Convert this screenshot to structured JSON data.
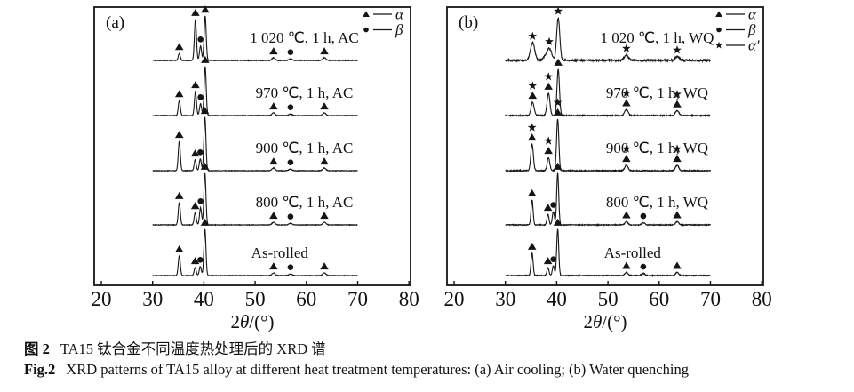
{
  "figure": {
    "caption": {
      "zh_label": "图 2",
      "zh_text": "TA15 钛合金不同温度热处理后的 XRD 谱",
      "en_label": "Fig.2",
      "en_text": "XRD patterns of TA15 alloy at different heat treatment temperatures: (a) Air cooling; (b) Water quenching"
    },
    "colors": {
      "ink": "#151515",
      "background": "#ffffff"
    }
  },
  "chart_data": [
    {
      "type": "line",
      "panel_label": "(a)",
      "xlabel": "2θ/(°)",
      "xlabel_parts": [
        {
          "t": "2",
          "italic": false
        },
        {
          "t": "θ",
          "italic": true
        },
        {
          "t": "/(°)",
          "italic": false
        }
      ],
      "xlim": [
        20,
        80
      ],
      "xticks": [
        20,
        30,
        40,
        50,
        60,
        70,
        80
      ],
      "ylabel": "",
      "grid": false,
      "legend_position": "top-right",
      "legend": [
        {
          "symbol": "triangle",
          "label": "α"
        },
        {
          "symbol": "dot",
          "label": "β"
        }
      ],
      "series": [
        {
          "label": "1 020 ℃, 1 h, AC",
          "noise": 0.35,
          "peaks": [
            {
              "x": 35.2,
              "i": 13
            },
            {
              "x": 38.35,
              "i": 77
            },
            {
              "x": 39.35,
              "i": 27
            },
            {
              "x": 40.25,
              "i": 83
            },
            {
              "x": 53.6,
              "i": 5,
              "w": 0.3
            },
            {
              "x": 56.9,
              "i": 3,
              "w": 0.3
            },
            {
              "x": 63.5,
              "i": 5,
              "w": 0.3
            }
          ],
          "markers": [
            {
              "x": 35.2,
              "phases": [
                "alpha"
              ]
            },
            {
              "x": 38.35,
              "phases": [
                "alpha"
              ]
            },
            {
              "x": 39.35,
              "phases": [
                "beta"
              ]
            },
            {
              "x": 40.25,
              "phases": [
                "alpha"
              ]
            },
            {
              "x": 53.6,
              "phases": [
                "alpha"
              ]
            },
            {
              "x": 56.9,
              "phases": [
                "beta"
              ]
            },
            {
              "x": 63.5,
              "phases": [
                "alpha"
              ]
            }
          ]
        },
        {
          "label": "970 ℃, 1 h, AC",
          "noise": 0.3,
          "peaks": [
            {
              "x": 35.2,
              "i": 28
            },
            {
              "x": 38.35,
              "i": 45
            },
            {
              "x": 39.35,
              "i": 22
            },
            {
              "x": 40.25,
              "i": 92
            },
            {
              "x": 53.6,
              "i": 5,
              "w": 0.3
            },
            {
              "x": 56.9,
              "i": 3,
              "w": 0.3
            },
            {
              "x": 63.5,
              "i": 5,
              "w": 0.3
            }
          ],
          "markers": [
            {
              "x": 35.2,
              "phases": [
                "alpha"
              ]
            },
            {
              "x": 38.35,
              "phases": [
                "alpha"
              ]
            },
            {
              "x": 39.35,
              "phases": [
                "beta"
              ]
            },
            {
              "x": 40.25,
              "phases": [
                "alpha"
              ]
            },
            {
              "x": 53.6,
              "phases": [
                "alpha"
              ]
            },
            {
              "x": 56.9,
              "phases": [
                "beta"
              ]
            },
            {
              "x": 63.5,
              "phases": [
                "alpha"
              ]
            }
          ]
        },
        {
          "label": "900 ℃, 1 h, AC",
          "noise": 0.3,
          "peaks": [
            {
              "x": 35.2,
              "i": 55
            },
            {
              "x": 38.3,
              "i": 20
            },
            {
              "x": 39.3,
              "i": 22
            },
            {
              "x": 40.2,
              "i": 100
            },
            {
              "x": 53.6,
              "i": 5,
              "w": 0.3
            },
            {
              "x": 56.9,
              "i": 3,
              "w": 0.3
            },
            {
              "x": 63.5,
              "i": 5,
              "w": 0.3
            }
          ],
          "markers": [
            {
              "x": 35.2,
              "phases": [
                "alpha"
              ]
            },
            {
              "x": 38.3,
              "phases": [
                "alpha"
              ]
            },
            {
              "x": 39.3,
              "phases": [
                "beta"
              ]
            },
            {
              "x": 40.2,
              "phases": [
                "alpha"
              ]
            },
            {
              "x": 53.6,
              "phases": [
                "alpha"
              ]
            },
            {
              "x": 56.9,
              "phases": [
                "beta"
              ]
            },
            {
              "x": 63.5,
              "phases": [
                "alpha"
              ]
            }
          ]
        },
        {
          "label": "800 ℃, 1 h, AC",
          "noise": 0.3,
          "peaks": [
            {
              "x": 35.2,
              "i": 42
            },
            {
              "x": 38.3,
              "i": 23
            },
            {
              "x": 39.35,
              "i": 32
            },
            {
              "x": 40.2,
              "i": 97
            },
            {
              "x": 53.6,
              "i": 5,
              "w": 0.3
            },
            {
              "x": 56.9,
              "i": 3,
              "w": 0.3
            },
            {
              "x": 63.5,
              "i": 5,
              "w": 0.3
            }
          ],
          "markers": [
            {
              "x": 35.2,
              "phases": [
                "alpha"
              ]
            },
            {
              "x": 38.3,
              "phases": [
                "alpha"
              ]
            },
            {
              "x": 39.35,
              "phases": [
                "beta"
              ]
            },
            {
              "x": 40.2,
              "phases": [
                "alpha"
              ]
            },
            {
              "x": 53.6,
              "phases": [
                "alpha"
              ]
            },
            {
              "x": 56.9,
              "phases": [
                "beta"
              ]
            },
            {
              "x": 63.5,
              "phases": [
                "alpha"
              ]
            }
          ]
        },
        {
          "label": "As-rolled",
          "noise": 0.3,
          "peaks": [
            {
              "x": 35.2,
              "i": 37
            },
            {
              "x": 38.3,
              "i": 15
            },
            {
              "x": 39.3,
              "i": 17
            },
            {
              "x": 40.2,
              "i": 87
            },
            {
              "x": 53.6,
              "i": 5,
              "w": 0.3
            },
            {
              "x": 56.9,
              "i": 3,
              "w": 0.3
            },
            {
              "x": 63.5,
              "i": 5,
              "w": 0.3
            }
          ],
          "markers": [
            {
              "x": 35.2,
              "phases": [
                "alpha"
              ]
            },
            {
              "x": 38.3,
              "phases": [
                "alpha"
              ]
            },
            {
              "x": 39.3,
              "phases": [
                "beta"
              ]
            },
            {
              "x": 40.2,
              "phases": [
                "alpha"
              ]
            },
            {
              "x": 53.6,
              "phases": [
                "alpha"
              ]
            },
            {
              "x": 56.9,
              "phases": [
                "beta"
              ]
            },
            {
              "x": 63.5,
              "phases": [
                "alpha"
              ]
            }
          ]
        }
      ]
    },
    {
      "type": "line",
      "panel_label": "(b)",
      "xlabel": "2θ/(°)",
      "xlabel_parts": [
        {
          "t": "2",
          "italic": false
        },
        {
          "t": "θ",
          "italic": true
        },
        {
          "t": "/(°)",
          "italic": false
        }
      ],
      "xlim": [
        20,
        80
      ],
      "xticks": [
        20,
        30,
        40,
        50,
        60,
        70,
        80
      ],
      "ylabel": "",
      "grid": false,
      "legend_position": "top-right",
      "legend": [
        {
          "symbol": "triangle",
          "label": "α"
        },
        {
          "symbol": "dot",
          "label": "β"
        },
        {
          "symbol": "star",
          "label": "α′"
        }
      ],
      "series": [
        {
          "label": "1 020 ℃, 1 h, WQ",
          "noise": 1.0,
          "peaks": [
            {
              "x": 35.3,
              "i": 33,
              "w": 0.42
            },
            {
              "x": 37.95,
              "i": 9,
              "w": 0.5
            },
            {
              "x": 38.65,
              "i": 19,
              "w": 0.42
            },
            {
              "x": 40.3,
              "i": 80,
              "w": 0.3
            },
            {
              "x": 53.6,
              "i": 10,
              "w": 0.38
            },
            {
              "x": 63.5,
              "i": 7,
              "w": 0.38
            }
          ],
          "markers": [
            {
              "x": 35.3,
              "phases": [
                "alpha_prime"
              ]
            },
            {
              "x": 38.55,
              "phases": [
                "alpha_prime"
              ]
            },
            {
              "x": 40.3,
              "phases": [
                "alpha_prime"
              ]
            },
            {
              "x": 53.6,
              "phases": [
                "alpha_prime"
              ]
            },
            {
              "x": 63.5,
              "phases": [
                "alpha_prime"
              ]
            }
          ]
        },
        {
          "label": "970 ℃, 1 h, WQ",
          "noise": 0.55,
          "peaks": [
            {
              "x": 35.3,
              "i": 25,
              "w": 0.3
            },
            {
              "x": 38.4,
              "i": 42,
              "w": 0.28
            },
            {
              "x": 40.3,
              "i": 87,
              "w": 0.24
            },
            {
              "x": 53.6,
              "i": 11,
              "w": 0.35
            },
            {
              "x": 63.5,
              "i": 9,
              "w": 0.35
            }
          ],
          "markers": [
            {
              "x": 35.3,
              "phases": [
                "alpha",
                "alpha_prime"
              ]
            },
            {
              "x": 38.4,
              "phases": [
                "alpha",
                "alpha_prime"
              ]
            },
            {
              "x": 40.3,
              "phases": [
                "alpha"
              ]
            },
            {
              "x": 53.6,
              "phases": [
                "alpha",
                "alpha_prime"
              ]
            },
            {
              "x": 63.5,
              "phases": [
                "alpha",
                "alpha_prime"
              ]
            }
          ]
        },
        {
          "label": "900 ℃, 1 h, WQ",
          "noise": 0.55,
          "peaks": [
            {
              "x": 35.2,
              "i": 50,
              "w": 0.25
            },
            {
              "x": 38.4,
              "i": 25,
              "w": 0.25
            },
            {
              "x": 40.2,
              "i": 97,
              "w": 0.22
            },
            {
              "x": 53.6,
              "i": 10,
              "w": 0.32
            },
            {
              "x": 63.5,
              "i": 10,
              "w": 0.32
            }
          ],
          "markers": [
            {
              "x": 35.2,
              "phases": [
                "alpha",
                "alpha_prime"
              ]
            },
            {
              "x": 38.4,
              "phases": [
                "alpha",
                "alpha_prime"
              ]
            },
            {
              "x": 40.2,
              "phases": [
                "alpha",
                "alpha_prime"
              ]
            },
            {
              "x": 53.6,
              "phases": [
                "alpha",
                "alpha_prime"
              ]
            },
            {
              "x": 63.5,
              "phases": [
                "alpha",
                "alpha_prime"
              ]
            }
          ]
        },
        {
          "label": "800 ℃, 1 h, WQ",
          "noise": 0.45,
          "peaks": [
            {
              "x": 35.2,
              "i": 47
            },
            {
              "x": 38.3,
              "i": 20
            },
            {
              "x": 39.35,
              "i": 25
            },
            {
              "x": 40.2,
              "i": 97
            },
            {
              "x": 53.6,
              "i": 6,
              "w": 0.3
            },
            {
              "x": 56.9,
              "i": 4,
              "w": 0.3
            },
            {
              "x": 63.5,
              "i": 6,
              "w": 0.3
            }
          ],
          "markers": [
            {
              "x": 35.2,
              "phases": [
                "alpha"
              ]
            },
            {
              "x": 38.3,
              "phases": [
                "alpha"
              ]
            },
            {
              "x": 39.35,
              "phases": [
                "beta"
              ]
            },
            {
              "x": 40.2,
              "phases": [
                "alpha"
              ]
            },
            {
              "x": 53.6,
              "phases": [
                "alpha"
              ]
            },
            {
              "x": 56.9,
              "phases": [
                "beta"
              ]
            },
            {
              "x": 63.5,
              "phases": [
                "alpha"
              ]
            }
          ]
        },
        {
          "label": "As-rolled",
          "noise": 0.45,
          "peaks": [
            {
              "x": 35.2,
              "i": 42
            },
            {
              "x": 38.3,
              "i": 15
            },
            {
              "x": 39.35,
              "i": 18
            },
            {
              "x": 40.2,
              "i": 87
            },
            {
              "x": 53.6,
              "i": 6,
              "w": 0.3
            },
            {
              "x": 56.9,
              "i": 4,
              "w": 0.3
            },
            {
              "x": 63.5,
              "i": 6,
              "w": 0.3
            }
          ],
          "markers": [
            {
              "x": 35.2,
              "phases": [
                "alpha"
              ]
            },
            {
              "x": 38.3,
              "phases": [
                "alpha"
              ]
            },
            {
              "x": 39.35,
              "phases": [
                "beta"
              ]
            },
            {
              "x": 40.2,
              "phases": [
                "alpha"
              ]
            },
            {
              "x": 53.6,
              "phases": [
                "alpha"
              ]
            },
            {
              "x": 56.9,
              "phases": [
                "beta"
              ]
            },
            {
              "x": 63.5,
              "phases": [
                "alpha"
              ]
            }
          ]
        }
      ]
    }
  ]
}
